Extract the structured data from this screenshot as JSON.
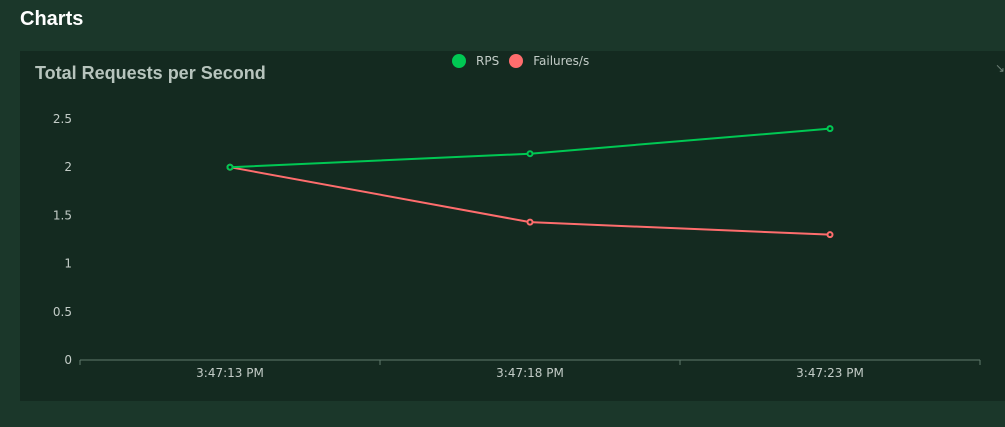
{
  "header": {
    "title": "Charts"
  },
  "chart_panel": {
    "restore_icon": "expand-icon"
  },
  "colors": {
    "background": "#1b372a",
    "panel": "#142a20",
    "rps": "#00c853",
    "failures": "#ff6d6d",
    "axis": "#5f7a6c",
    "text": "#c3ccc7"
  },
  "chart_data": {
    "type": "line",
    "title": "Total Requests per Second",
    "xlabel": "",
    "ylabel": "",
    "categories": [
      "3:47:13 PM",
      "3:47:18 PM",
      "3:47:23 PM"
    ],
    "x_tick_labels": [
      "3:47:13 PM",
      "3:47:18 PM",
      "3:47:23 PM"
    ],
    "ylim": [
      0,
      2.5
    ],
    "y_ticks": [
      0,
      0.5,
      1,
      1.5,
      2,
      2.5
    ],
    "y_tick_labels": [
      "0",
      "0.5",
      "1",
      "1.5",
      "2",
      "2.5"
    ],
    "grid": false,
    "legend_position": "top-center",
    "series": [
      {
        "name": "RPS",
        "color": "#00c853",
        "values": [
          2.0,
          2.14,
          2.4
        ]
      },
      {
        "name": "Failures/s",
        "color": "#ff6d6d",
        "values": [
          2.0,
          1.43,
          1.3
        ]
      }
    ]
  }
}
